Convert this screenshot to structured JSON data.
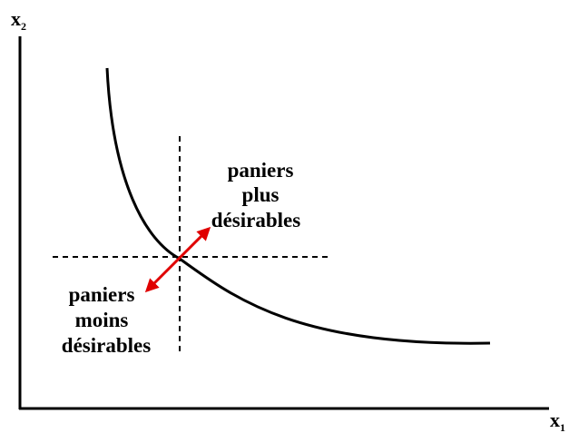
{
  "axes": {
    "y_label": {
      "base": "x",
      "sub": "2"
    },
    "x_label": {
      "base": "x",
      "sub": "1"
    }
  },
  "labels": {
    "more": [
      "paniers",
      "plus",
      "désirables"
    ],
    "less": [
      "paniers",
      "moins",
      "désirables"
    ]
  }
}
